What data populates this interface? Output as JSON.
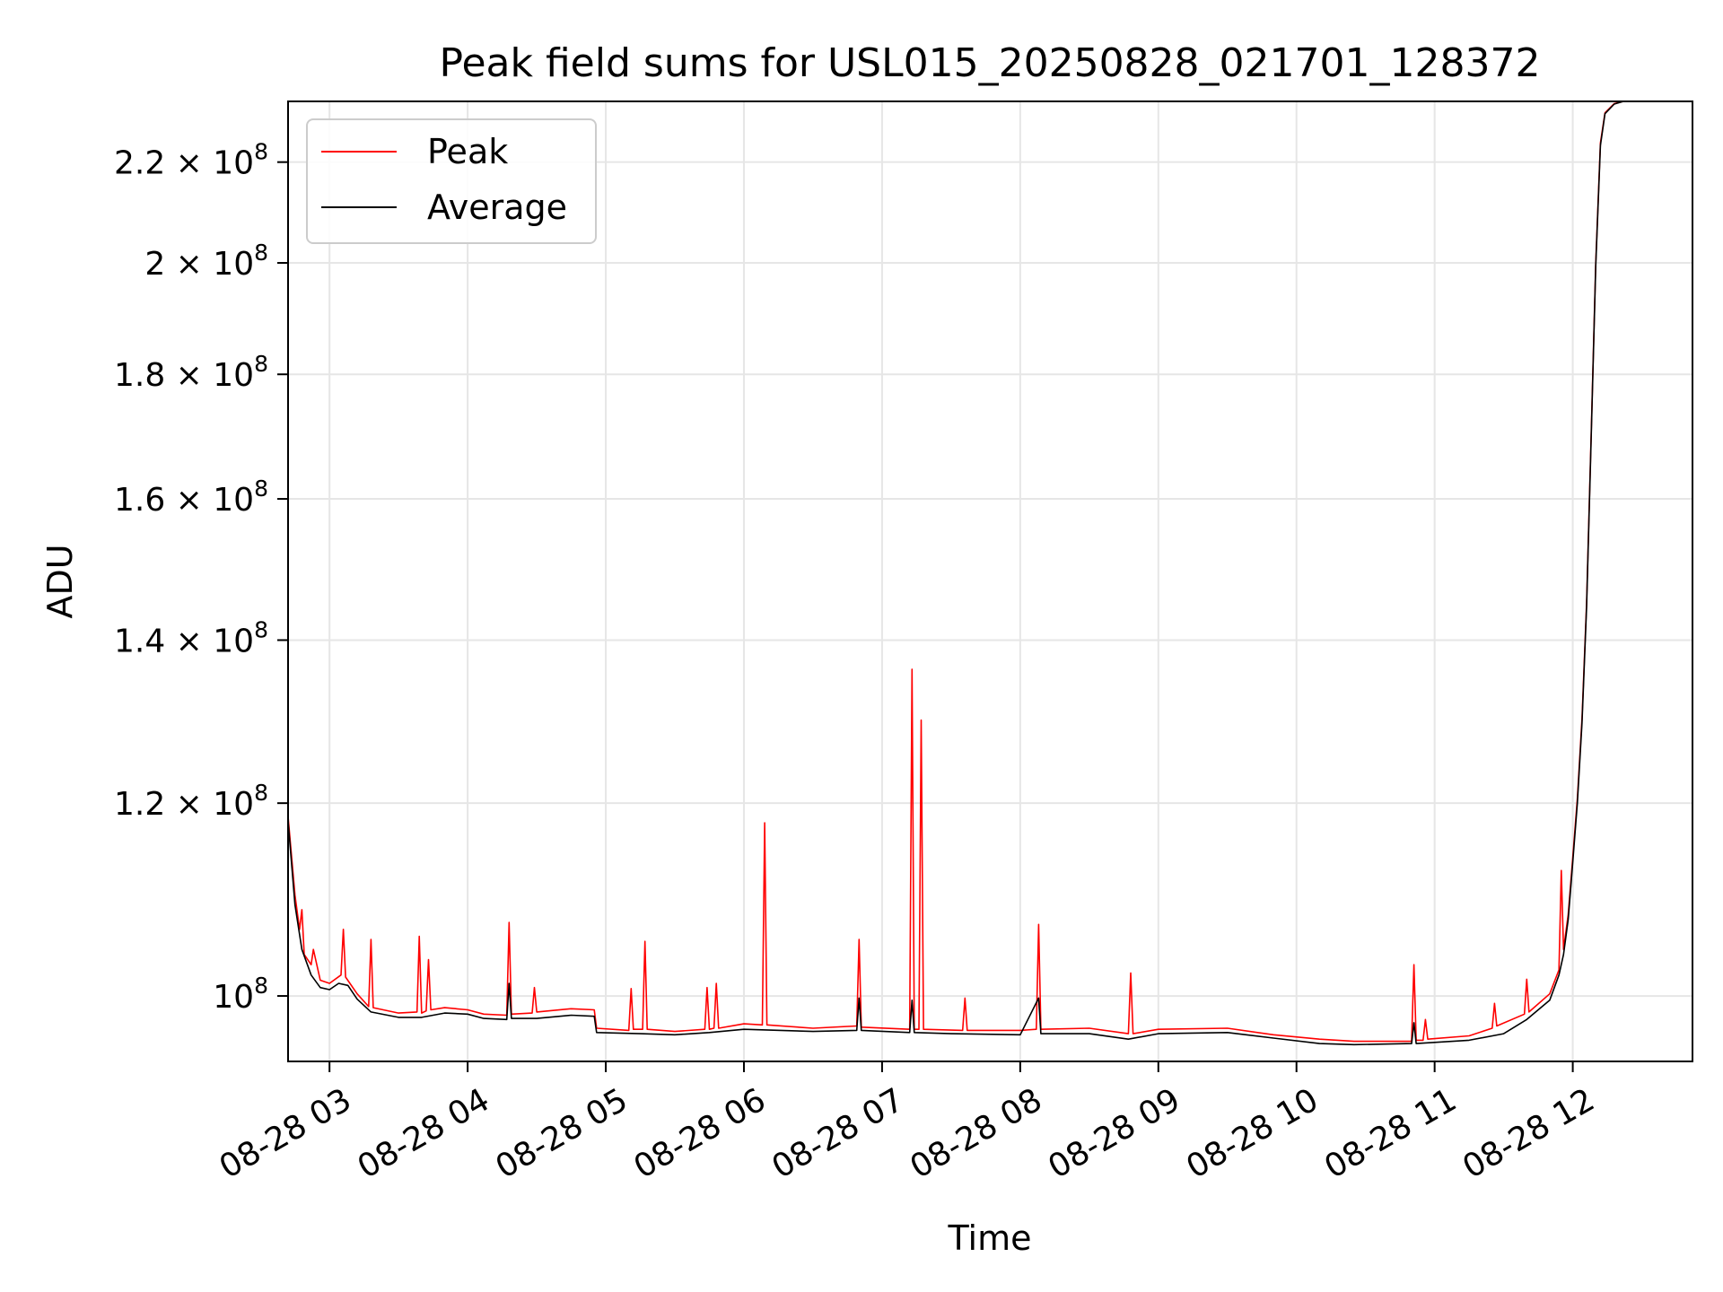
{
  "chart_data": {
    "type": "line",
    "title": "Peak field sums for USL015_20250828_021701_128372",
    "xlabel": "Time",
    "ylabel": "ADU",
    "x_range": [
      "2025-08-28 02:42",
      "2025-08-28 12:52"
    ],
    "ylim": [
      94000000,
      233000000
    ],
    "y_scale": "log",
    "grid": true,
    "legend_position": "top-left",
    "x_ticks": [
      {
        "value": "2025-08-28 03:00",
        "label": "08-28 03"
      },
      {
        "value": "2025-08-28 04:00",
        "label": "08-28 04"
      },
      {
        "value": "2025-08-28 05:00",
        "label": "08-28 05"
      },
      {
        "value": "2025-08-28 06:00",
        "label": "08-28 06"
      },
      {
        "value": "2025-08-28 07:00",
        "label": "08-28 07"
      },
      {
        "value": "2025-08-28 08:00",
        "label": "08-28 08"
      },
      {
        "value": "2025-08-28 09:00",
        "label": "08-28 09"
      },
      {
        "value": "2025-08-28 10:00",
        "label": "08-28 10"
      },
      {
        "value": "2025-08-28 11:00",
        "label": "08-28 11"
      },
      {
        "value": "2025-08-28 12:00",
        "label": "08-28 12"
      }
    ],
    "y_ticks": [
      {
        "value": 100000000,
        "mantissa": "",
        "exp": "8"
      },
      {
        "value": 120000000,
        "mantissa": "1.2",
        "exp": "8"
      },
      {
        "value": 140000000,
        "mantissa": "1.4",
        "exp": "8"
      },
      {
        "value": 160000000,
        "mantissa": "1.6",
        "exp": "8"
      },
      {
        "value": 180000000,
        "mantissa": "1.8",
        "exp": "8"
      },
      {
        "value": 200000000,
        "mantissa": "2",
        "exp": "8"
      },
      {
        "value": 220000000,
        "mantissa": "2.2",
        "exp": "8"
      }
    ],
    "series": [
      {
        "name": "Peak",
        "color": "#ff0000",
        "points": [
          [
            "2025-08-28 02:42",
            118500000
          ],
          [
            "2025-08-28 02:45",
            110000000
          ],
          [
            "2025-08-28 02:47",
            106500000
          ],
          [
            "2025-08-28 02:48",
            108500000
          ],
          [
            "2025-08-28 02:49",
            104000000
          ],
          [
            "2025-08-28 02:52",
            103000000
          ],
          [
            "2025-08-28 02:53",
            104500000
          ],
          [
            "2025-08-28 02:56",
            101500000
          ],
          [
            "2025-08-28 03:00",
            101200000
          ],
          [
            "2025-08-28 03:05",
            102000000
          ],
          [
            "2025-08-28 03:06",
            106500000
          ],
          [
            "2025-08-28 03:07",
            101800000
          ],
          [
            "2025-08-28 03:12",
            100200000
          ],
          [
            "2025-08-28 03:17",
            99000000
          ],
          [
            "2025-08-28 03:18",
            105500000
          ],
          [
            "2025-08-28 03:19",
            98900000
          ],
          [
            "2025-08-28 03:30",
            98400000
          ],
          [
            "2025-08-28 03:38",
            98500000
          ],
          [
            "2025-08-28 03:39",
            105800000
          ],
          [
            "2025-08-28 03:40",
            98400000
          ],
          [
            "2025-08-28 03:42",
            98600000
          ],
          [
            "2025-08-28 03:43",
            103500000
          ],
          [
            "2025-08-28 03:44",
            98700000
          ],
          [
            "2025-08-28 03:50",
            98900000
          ],
          [
            "2025-08-28 04:00",
            98700000
          ],
          [
            "2025-08-28 04:07",
            98300000
          ],
          [
            "2025-08-28 04:17",
            98200000
          ],
          [
            "2025-08-28 04:18",
            107200000
          ],
          [
            "2025-08-28 04:19",
            98300000
          ],
          [
            "2025-08-28 04:28",
            98400000
          ],
          [
            "2025-08-28 04:29",
            100800000
          ],
          [
            "2025-08-28 04:30",
            98500000
          ],
          [
            "2025-08-28 04:45",
            98800000
          ],
          [
            "2025-08-28 04:55",
            98700000
          ],
          [
            "2025-08-28 04:56",
            97000000
          ],
          [
            "2025-08-28 05:10",
            96800000
          ],
          [
            "2025-08-28 05:11",
            100700000
          ],
          [
            "2025-08-28 05:12",
            96900000
          ],
          [
            "2025-08-28 05:16",
            96900000
          ],
          [
            "2025-08-28 05:17",
            105300000
          ],
          [
            "2025-08-28 05:18",
            96900000
          ],
          [
            "2025-08-28 05:30",
            96700000
          ],
          [
            "2025-08-28 05:43",
            96900000
          ],
          [
            "2025-08-28 05:44",
            100800000
          ],
          [
            "2025-08-28 05:45",
            96900000
          ],
          [
            "2025-08-28 05:47",
            97000000
          ],
          [
            "2025-08-28 05:48",
            101200000
          ],
          [
            "2025-08-28 05:49",
            97000000
          ],
          [
            "2025-08-28 06:00",
            97400000
          ],
          [
            "2025-08-28 06:08",
            97300000
          ],
          [
            "2025-08-28 06:09",
            117800000
          ],
          [
            "2025-08-28 06:10",
            97300000
          ],
          [
            "2025-08-28 06:30",
            97000000
          ],
          [
            "2025-08-28 06:49",
            97200000
          ],
          [
            "2025-08-28 06:50",
            105500000
          ],
          [
            "2025-08-28 06:51",
            97100000
          ],
          [
            "2025-08-28 07:12",
            96900000
          ],
          [
            "2025-08-28 07:13",
            136200000
          ],
          [
            "2025-08-28 07:14",
            96900000
          ],
          [
            "2025-08-28 07:16",
            96900000
          ],
          [
            "2025-08-28 07:17",
            129800000
          ],
          [
            "2025-08-28 07:18",
            96900000
          ],
          [
            "2025-08-28 07:35",
            96800000
          ],
          [
            "2025-08-28 07:36",
            99800000
          ],
          [
            "2025-08-28 07:37",
            96800000
          ],
          [
            "2025-08-28 08:00",
            96800000
          ],
          [
            "2025-08-28 08:07",
            96900000
          ],
          [
            "2025-08-28 08:08",
            107000000
          ],
          [
            "2025-08-28 08:09",
            96900000
          ],
          [
            "2025-08-28 08:30",
            97000000
          ],
          [
            "2025-08-28 08:47",
            96500000
          ],
          [
            "2025-08-28 08:48",
            102200000
          ],
          [
            "2025-08-28 08:49",
            96500000
          ],
          [
            "2025-08-28 09:00",
            96900000
          ],
          [
            "2025-08-28 09:30",
            97000000
          ],
          [
            "2025-08-28 09:50",
            96400000
          ],
          [
            "2025-08-28 10:10",
            96000000
          ],
          [
            "2025-08-28 10:25",
            95800000
          ],
          [
            "2025-08-28 10:50",
            95800000
          ],
          [
            "2025-08-28 10:51",
            103000000
          ],
          [
            "2025-08-28 10:52",
            95900000
          ],
          [
            "2025-08-28 10:55",
            95900000
          ],
          [
            "2025-08-28 10:56",
            97800000
          ],
          [
            "2025-08-28 10:57",
            96000000
          ],
          [
            "2025-08-28 11:15",
            96300000
          ],
          [
            "2025-08-28 11:25",
            97000000
          ],
          [
            "2025-08-28 11:26",
            99300000
          ],
          [
            "2025-08-28 11:27",
            97200000
          ],
          [
            "2025-08-28 11:39",
            98300000
          ],
          [
            "2025-08-28 11:40",
            101600000
          ],
          [
            "2025-08-28 11:41",
            98500000
          ],
          [
            "2025-08-28 11:50",
            100200000
          ],
          [
            "2025-08-28 11:54",
            102500000
          ],
          [
            "2025-08-28 11:55",
            112600000
          ],
          [
            "2025-08-28 11:56",
            104500000
          ],
          [
            "2025-08-28 11:58",
            108000000
          ],
          [
            "2025-08-28 12:00",
            114000000
          ],
          [
            "2025-08-28 12:02",
            120500000
          ],
          [
            "2025-08-28 12:04",
            130000000
          ],
          [
            "2025-08-28 12:06",
            145000000
          ],
          [
            "2025-08-28 12:08",
            170000000
          ],
          [
            "2025-08-28 12:10",
            200000000
          ],
          [
            "2025-08-28 12:12",
            224000000
          ],
          [
            "2025-08-28 12:14",
            230500000
          ],
          [
            "2025-08-28 12:18",
            232500000
          ],
          [
            "2025-08-28 12:22",
            233000000
          ]
        ]
      },
      {
        "name": "Average",
        "color": "#000000",
        "points": [
          [
            "2025-08-28 02:42",
            118000000
          ],
          [
            "2025-08-28 02:45",
            109000000
          ],
          [
            "2025-08-28 02:48",
            104500000
          ],
          [
            "2025-08-28 02:52",
            102000000
          ],
          [
            "2025-08-28 02:56",
            100800000
          ],
          [
            "2025-08-28 03:00",
            100600000
          ],
          [
            "2025-08-28 03:04",
            101200000
          ],
          [
            "2025-08-28 03:08",
            101000000
          ],
          [
            "2025-08-28 03:12",
            99700000
          ],
          [
            "2025-08-28 03:18",
            98500000
          ],
          [
            "2025-08-28 03:30",
            98000000
          ],
          [
            "2025-08-28 03:40",
            98000000
          ],
          [
            "2025-08-28 03:50",
            98400000
          ],
          [
            "2025-08-28 04:00",
            98300000
          ],
          [
            "2025-08-28 04:07",
            97900000
          ],
          [
            "2025-08-28 04:17",
            97800000
          ],
          [
            "2025-08-28 04:18",
            101200000
          ],
          [
            "2025-08-28 04:19",
            97900000
          ],
          [
            "2025-08-28 04:30",
            97900000
          ],
          [
            "2025-08-28 04:45",
            98200000
          ],
          [
            "2025-08-28 04:55",
            98100000
          ],
          [
            "2025-08-28 04:56",
            96600000
          ],
          [
            "2025-08-28 05:15",
            96500000
          ],
          [
            "2025-08-28 05:30",
            96400000
          ],
          [
            "2025-08-28 05:45",
            96600000
          ],
          [
            "2025-08-28 06:00",
            96900000
          ],
          [
            "2025-08-28 06:30",
            96700000
          ],
          [
            "2025-08-28 06:49",
            96800000
          ],
          [
            "2025-08-28 06:50",
            99800000
          ],
          [
            "2025-08-28 06:51",
            96800000
          ],
          [
            "2025-08-28 07:12",
            96600000
          ],
          [
            "2025-08-28 07:13",
            99600000
          ],
          [
            "2025-08-28 07:14",
            96600000
          ],
          [
            "2025-08-28 07:30",
            96500000
          ],
          [
            "2025-08-28 08:00",
            96400000
          ],
          [
            "2025-08-28 08:08",
            99800000
          ],
          [
            "2025-08-28 08:09",
            96500000
          ],
          [
            "2025-08-28 08:30",
            96500000
          ],
          [
            "2025-08-28 08:47",
            96000000
          ],
          [
            "2025-08-28 09:00",
            96500000
          ],
          [
            "2025-08-28 09:30",
            96600000
          ],
          [
            "2025-08-28 09:50",
            96100000
          ],
          [
            "2025-08-28 10:10",
            95600000
          ],
          [
            "2025-08-28 10:25",
            95500000
          ],
          [
            "2025-08-28 10:50",
            95600000
          ],
          [
            "2025-08-28 10:51",
            97500000
          ],
          [
            "2025-08-28 10:52",
            95600000
          ],
          [
            "2025-08-28 11:15",
            95900000
          ],
          [
            "2025-08-28 11:30",
            96500000
          ],
          [
            "2025-08-28 11:40",
            97800000
          ],
          [
            "2025-08-28 11:50",
            99600000
          ],
          [
            "2025-08-28 11:54",
            102000000
          ],
          [
            "2025-08-28 11:56",
            104000000
          ],
          [
            "2025-08-28 11:58",
            107500000
          ],
          [
            "2025-08-28 12:00",
            113500000
          ],
          [
            "2025-08-28 12:02",
            120000000
          ],
          [
            "2025-08-28 12:04",
            129500000
          ],
          [
            "2025-08-28 12:06",
            144500000
          ],
          [
            "2025-08-28 12:08",
            169500000
          ],
          [
            "2025-08-28 12:10",
            199500000
          ],
          [
            "2025-08-28 12:12",
            223500000
          ],
          [
            "2025-08-28 12:14",
            230300000
          ],
          [
            "2025-08-28 12:18",
            232400000
          ],
          [
            "2025-08-28 12:22",
            233000000
          ]
        ]
      }
    ]
  }
}
